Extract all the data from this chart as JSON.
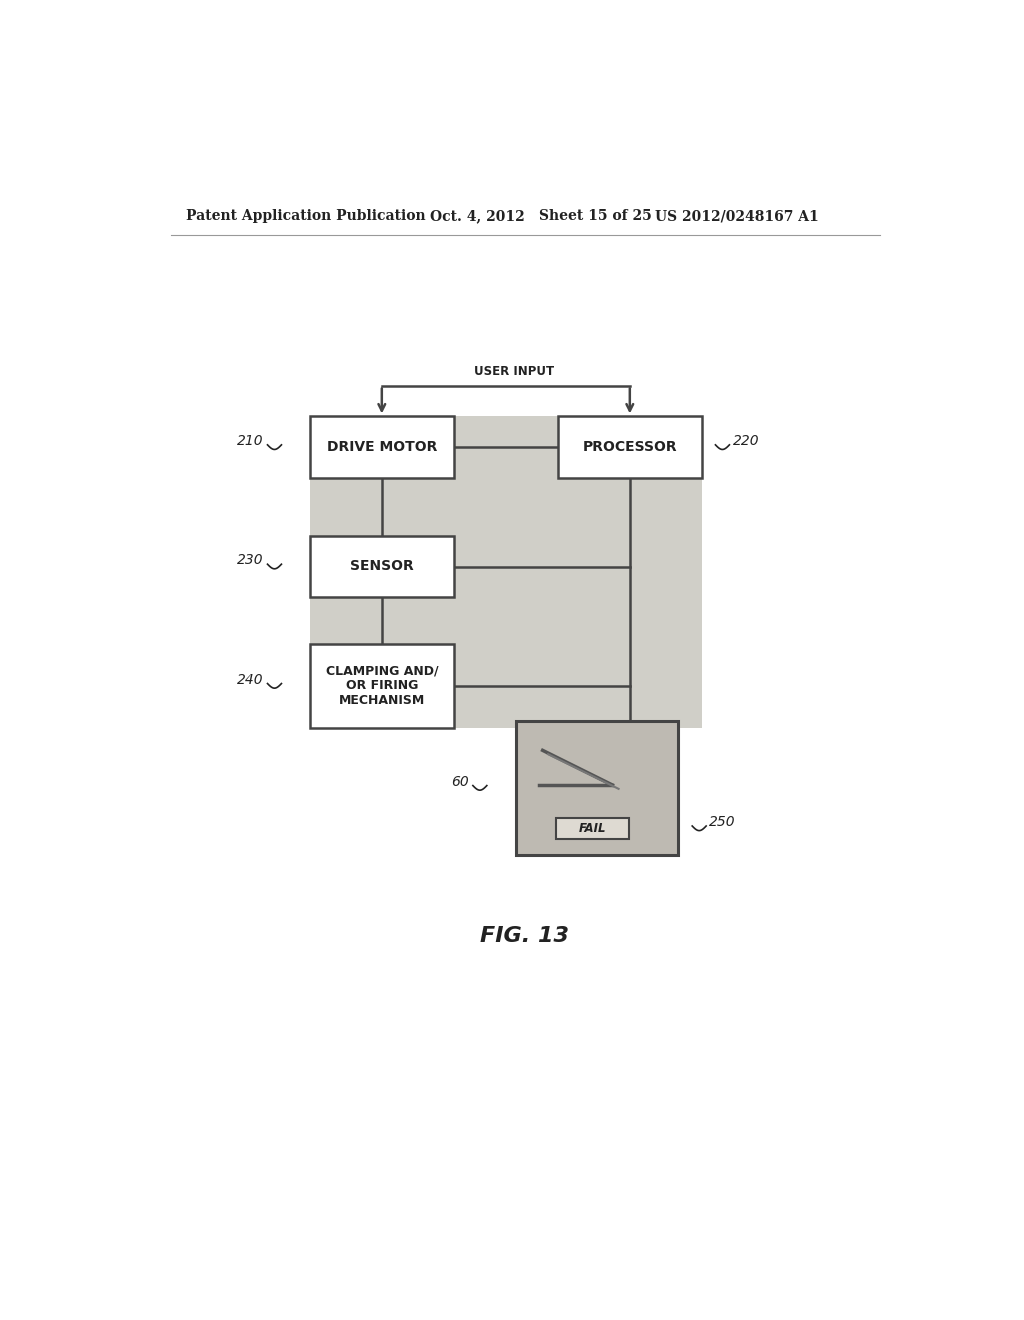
{
  "bg_color": "#ffffff",
  "header_text": "Patent Application Publication",
  "header_date": "Oct. 4, 2012",
  "header_sheet": "Sheet 15 of 25",
  "header_patent": "US 2012/0248167 A1",
  "user_input_label": "USER INPUT",
  "drive_motor_label": "DRIVE MOTOR",
  "processor_label": "PROCESSOR",
  "sensor_label": "SENSOR",
  "clamping_label": "CLAMPING AND/\nOR FIRING\nMECHANISM",
  "fail_label": "FAIL",
  "fig_label": "FIG. 13",
  "ref_210": "210",
  "ref_220": "220",
  "ref_230": "230",
  "ref_240": "240",
  "ref_60": "60",
  "ref_250": "250",
  "box_edge_color": "#444444",
  "line_color": "#444444",
  "text_color": "#222222",
  "shade_color": "#d0cfc8"
}
